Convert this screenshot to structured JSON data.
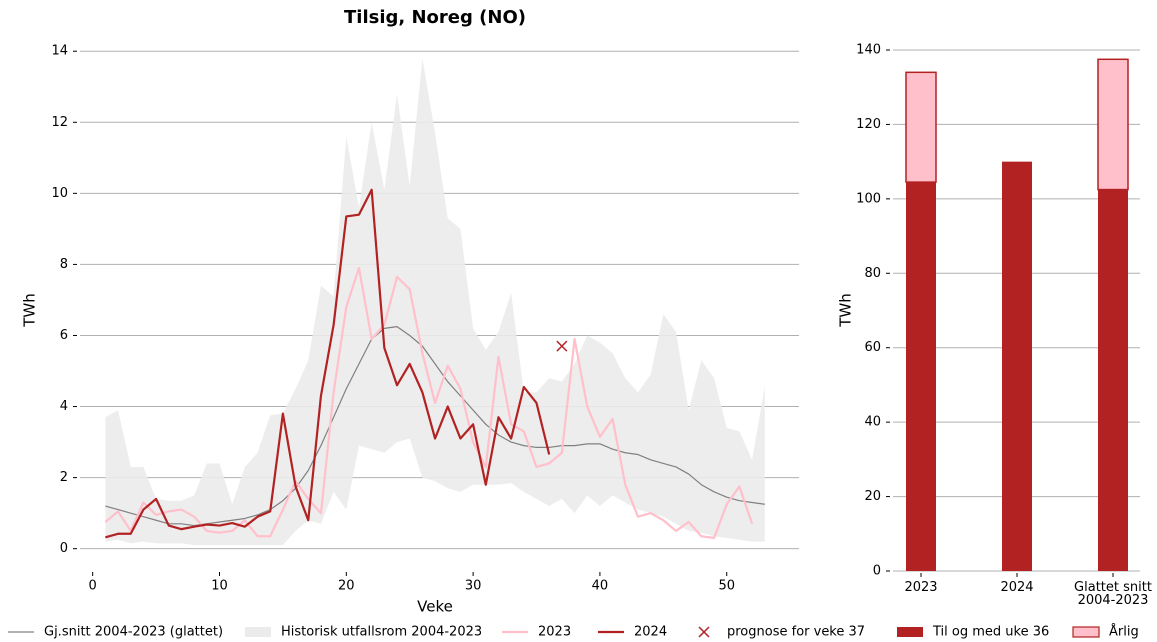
{
  "chart_data": [
    {
      "type": "line",
      "title": "Tilsig, Noreg (NO)",
      "xlabel": "Veke",
      "ylabel": "TWh",
      "x": [
        1,
        2,
        3,
        4,
        5,
        6,
        7,
        8,
        9,
        10,
        11,
        12,
        13,
        14,
        15,
        16,
        17,
        18,
        19,
        20,
        21,
        22,
        23,
        24,
        25,
        26,
        27,
        28,
        29,
        30,
        31,
        32,
        33,
        34,
        35,
        36,
        37,
        38,
        39,
        40,
        41,
        42,
        43,
        44,
        45,
        46,
        47,
        48,
        49,
        50,
        51,
        52,
        53
      ],
      "xlim": [
        -1,
        55.7
      ],
      "ylim": [
        -0.6,
        14.4
      ],
      "xticks": [
        0,
        10,
        20,
        30,
        40,
        50
      ],
      "yticks": [
        0,
        2,
        4,
        6,
        8,
        10,
        12,
        14
      ],
      "grid": true,
      "series": [
        {
          "name": "Gj.snitt 2004-2023 (glattet)",
          "color": "#808080",
          "style": "line",
          "values": [
            1.2,
            1.1,
            1.0,
            0.9,
            0.8,
            0.7,
            0.7,
            0.65,
            0.7,
            0.75,
            0.8,
            0.85,
            0.95,
            1.1,
            1.35,
            1.7,
            2.2,
            2.9,
            3.7,
            4.5,
            5.2,
            5.9,
            6.2,
            6.25,
            6.0,
            5.7,
            5.2,
            4.7,
            4.3,
            3.9,
            3.5,
            3.2,
            3.0,
            2.9,
            2.85,
            2.85,
            2.9,
            2.9,
            2.95,
            2.95,
            2.8,
            2.7,
            2.65,
            2.5,
            2.4,
            2.3,
            2.1,
            1.8,
            1.6,
            1.45,
            1.35,
            1.3,
            1.25
          ]
        },
        {
          "name": "Historisk utfallsrom 2004-2023",
          "color": "#ebebeb",
          "style": "band",
          "upper": [
            3.7,
            3.9,
            2.3,
            2.3,
            1.4,
            1.35,
            1.35,
            1.5,
            2.4,
            2.4,
            1.25,
            2.3,
            2.7,
            3.75,
            3.8,
            4.5,
            5.3,
            7.4,
            7.1,
            11.6,
            9.6,
            12.0,
            10.1,
            12.8,
            10.2,
            13.8,
            11.7,
            9.3,
            9.0,
            6.2,
            5.6,
            6.1,
            7.2,
            4.4,
            4.4,
            4.8,
            4.7,
            5.2,
            6.0,
            5.8,
            5.5,
            4.8,
            4.4,
            4.9,
            6.6,
            6.1,
            3.9,
            5.3,
            4.8,
            3.4,
            3.3,
            2.5,
            4.55
          ],
          "lower": [
            0.2,
            0.25,
            0.15,
            0.2,
            0.15,
            0.15,
            0.15,
            0.1,
            0.1,
            0.1,
            0.1,
            0.1,
            0.1,
            0.1,
            0.1,
            0.5,
            0.8,
            0.7,
            1.6,
            1.1,
            2.9,
            2.8,
            2.7,
            3.0,
            3.1,
            2.0,
            1.9,
            1.7,
            1.6,
            1.8,
            1.8,
            1.8,
            1.85,
            1.6,
            1.4,
            1.2,
            1.4,
            1.0,
            1.5,
            1.2,
            1.5,
            1.3,
            1.1,
            1.0,
            0.9,
            0.7,
            0.5,
            0.45,
            0.35,
            0.3,
            0.25,
            0.2,
            0.2
          ]
        },
        {
          "name": "2023",
          "color": "#ffc0cb",
          "style": "line",
          "values": [
            0.75,
            1.05,
            0.5,
            1.3,
            0.95,
            1.05,
            1.1,
            0.9,
            0.5,
            0.45,
            0.5,
            0.8,
            0.35,
            0.35,
            1.1,
            1.9,
            1.4,
            1.0,
            4.4,
            6.8,
            7.9,
            5.9,
            6.3,
            7.65,
            7.3,
            5.5,
            4.1,
            5.15,
            4.5,
            3.0,
            2.3,
            5.4,
            3.5,
            3.3,
            2.3,
            2.4,
            2.7,
            5.9,
            4.0,
            3.15,
            3.65,
            1.8,
            0.9,
            1.0,
            0.8,
            0.5,
            0.75,
            0.35,
            0.3,
            1.25,
            1.75,
            0.7,
            null
          ]
        },
        {
          "name": "2024",
          "color": "#b22222",
          "style": "line",
          "values": [
            0.32,
            0.42,
            0.42,
            1.1,
            1.4,
            0.65,
            0.55,
            0.62,
            0.68,
            0.65,
            0.72,
            0.62,
            0.9,
            1.05,
            3.8,
            1.75,
            0.8,
            4.3,
            6.3,
            9.35,
            9.4,
            10.1,
            5.65,
            4.6,
            5.2,
            4.4,
            3.1,
            4.0,
            3.1,
            3.5,
            1.8,
            3.7,
            3.1,
            4.55,
            4.1,
            2.65,
            null,
            null,
            null,
            null,
            null,
            null,
            null,
            null,
            null,
            null,
            null,
            null,
            null,
            null,
            null,
            null,
            null
          ]
        },
        {
          "name": "prognose for veke 37",
          "color": "#b22222",
          "style": "marker",
          "x": [
            37
          ],
          "values": [
            5.7
          ]
        }
      ]
    },
    {
      "type": "bar",
      "ylabel": "TWh",
      "categories": [
        "2023",
        "2024",
        "Glattet snitt\n2004-2023"
      ],
      "ylim": [
        0,
        140
      ],
      "yticks": [
        0,
        20,
        40,
        60,
        80,
        100,
        120,
        140
      ],
      "grid": true,
      "stacked": true,
      "series": [
        {
          "name": "Til og med uke 36",
          "color": "#b22222",
          "values": [
            104.5,
            110,
            102.5
          ]
        },
        {
          "name": "Årlig",
          "color": "#ffc0cb",
          "edgecolor": "#b22222",
          "values": [
            29.5,
            null,
            35
          ]
        }
      ]
    }
  ]
}
